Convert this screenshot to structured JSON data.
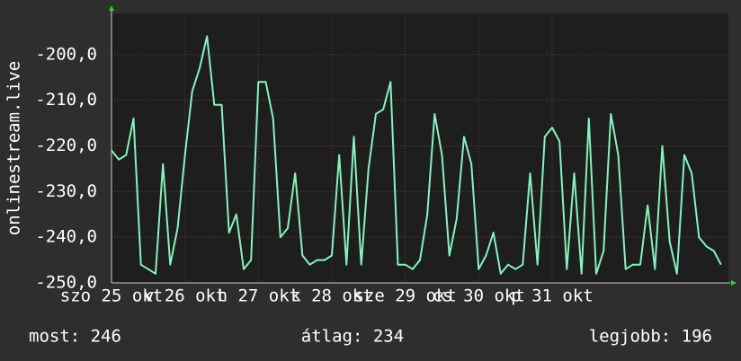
{
  "chart_data": {
    "type": "line",
    "y_label": "onlinestream.live",
    "xlim": [
      0,
      84
    ],
    "xticks": [
      {
        "value": 0,
        "label": "szo 25 okt"
      },
      {
        "value": 10,
        "label": "v 26 okt"
      },
      {
        "value": 20,
        "label": "h 27 okt"
      },
      {
        "value": 30,
        "label": "k 28 okt"
      },
      {
        "value": 40,
        "label": "sze 29 okt"
      },
      {
        "value": 50,
        "label": "cs 30 okt"
      },
      {
        "value": 60,
        "label": "p 31 okt"
      }
    ],
    "ylim": [
      -250,
      -191
    ],
    "yticks": [
      {
        "value": -250,
        "label": "-250,0"
      },
      {
        "value": -240,
        "label": "-240,0"
      },
      {
        "value": -230,
        "label": "-230,0"
      },
      {
        "value": -220,
        "label": "-220,0"
      },
      {
        "value": -210,
        "label": "-210,0"
      },
      {
        "value": -200,
        "label": "-200,0"
      }
    ],
    "grid": true,
    "color": "#86f2bd",
    "values": [
      -221,
      -223,
      -222,
      -214,
      -246,
      -247,
      -248,
      -224,
      -246,
      -238,
      -222,
      -208,
      -203,
      -196,
      -211,
      -211,
      -239,
      -235,
      -247,
      -245,
      -206,
      -206,
      -214,
      -240,
      -238,
      -226,
      -244,
      -246,
      -245,
      -245,
      -244,
      -222,
      -246,
      -218,
      -246,
      -225,
      -213,
      -212,
      -206,
      -246,
      -246,
      -247,
      -245,
      -235,
      -213,
      -222,
      -244,
      -236,
      -218,
      -224,
      -247,
      -244,
      -239,
      -248,
      -246,
      -247,
      -246,
      -226,
      -246,
      -218,
      -216,
      -219,
      -247,
      -226,
      -248,
      -214,
      -248,
      -243,
      -213,
      -222,
      -247,
      -246,
      -246,
      -233,
      -247,
      -220,
      -241,
      -248,
      -222,
      -226,
      -240,
      -242,
      -243,
      -246
    ]
  },
  "stats": [
    "most: 246",
    "átlag: 234",
    "legjobb: 196"
  ]
}
